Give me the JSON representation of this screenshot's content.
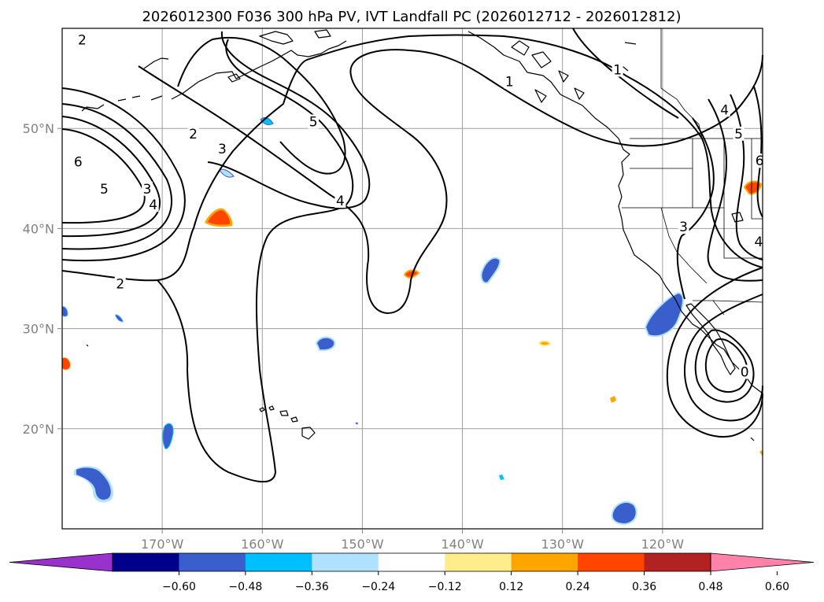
{
  "title": "2026012300 F036 300 hPa PV, IVT Landfall PC (2026012712 - 2026012812)",
  "map": {
    "lon_range": [
      -180,
      -110
    ],
    "lat_range": [
      10,
      60
    ],
    "lon_ticks": [
      {
        "lon": -170,
        "label": "170°W"
      },
      {
        "lon": -160,
        "label": "160°W"
      },
      {
        "lon": -150,
        "label": "150°W"
      },
      {
        "lon": -140,
        "label": "140°W"
      },
      {
        "lon": -130,
        "label": "130°W"
      },
      {
        "lon": -120,
        "label": "120°W"
      }
    ],
    "lat_ticks": [
      {
        "lat": 20,
        "label": "20°N"
      },
      {
        "lat": 30,
        "label": "30°N"
      },
      {
        "lat": 40,
        "label": "40°N"
      },
      {
        "lat": 50,
        "label": "50°N"
      }
    ],
    "contour_labels": [
      {
        "text": "2",
        "lon": -178,
        "lat": 58.8
      },
      {
        "text": "6",
        "lon": -178.4,
        "lat": 46.6
      },
      {
        "text": "5",
        "lon": -175.8,
        "lat": 43.9
      },
      {
        "text": "4",
        "lon": -170.9,
        "lat": 42.3
      },
      {
        "text": "3",
        "lon": -171.5,
        "lat": 43.9
      },
      {
        "text": "2",
        "lon": -166.9,
        "lat": 49.4
      },
      {
        "text": "3",
        "lon": -164,
        "lat": 47.9
      },
      {
        "text": "5",
        "lon": -154.9,
        "lat": 50.6
      },
      {
        "text": "4",
        "lon": -152.2,
        "lat": 42.7
      },
      {
        "text": "2",
        "lon": -174.2,
        "lat": 34.4
      },
      {
        "text": "1",
        "lon": -135.3,
        "lat": 54.6
      },
      {
        "text": "1",
        "lon": -124.5,
        "lat": 55.8
      },
      {
        "text": "4",
        "lon": -113.8,
        "lat": 51.8
      },
      {
        "text": "5",
        "lon": -112.4,
        "lat": 49.4
      },
      {
        "text": "6",
        "lon": -110.3,
        "lat": 46.7
      },
      {
        "text": "3",
        "lon": -117.9,
        "lat": 40.1
      },
      {
        "text": "4",
        "lon": -110.4,
        "lat": 38.6
      },
      {
        "text": "0",
        "lon": -111.8,
        "lat": 25.6
      }
    ]
  },
  "colorbar": {
    "ticks": [
      "−0.60",
      "−0.48",
      "−0.36",
      "−0.24",
      "−0.12",
      "0.12",
      "0.24",
      "0.36",
      "0.48",
      "0.60"
    ],
    "colors": [
      "#9932cc",
      "#00008b",
      "#3a5fcd",
      "#00bfff",
      "#b0e2ff",
      "#ffffff",
      "#ffec8b",
      "#ffa500",
      "#ff4500",
      "#b22222",
      "#ff82ab"
    ]
  }
}
